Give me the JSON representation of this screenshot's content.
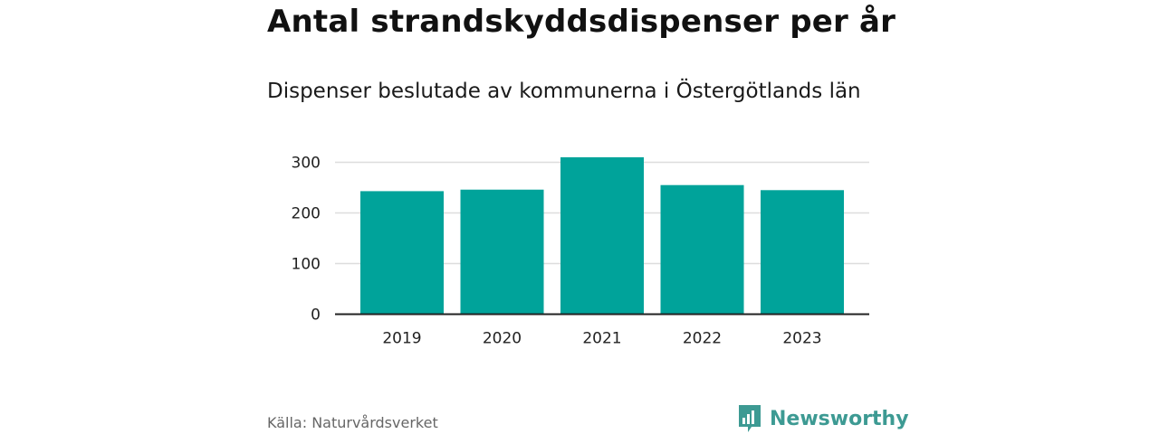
{
  "chart_data": {
    "type": "bar",
    "title": "Antal strandskyddsdispenser per år",
    "subtitle": "Dispenser beslutade av kommunerna i Östergötlands län",
    "categories": [
      "2019",
      "2020",
      "2021",
      "2022",
      "2023"
    ],
    "values": [
      243,
      246,
      310,
      255,
      245
    ],
    "xlabel": "",
    "ylabel": "",
    "ylim": [
      0,
      300
    ],
    "yticks": [
      0,
      100,
      200,
      300
    ],
    "grid": true,
    "bar_color": "#00a39a"
  },
  "source": "Källa: Naturvårdsverket",
  "brand": {
    "name": "Newsworthy",
    "icon": "bar-chart-speech-bubble-icon",
    "color": "#3d9a93"
  }
}
